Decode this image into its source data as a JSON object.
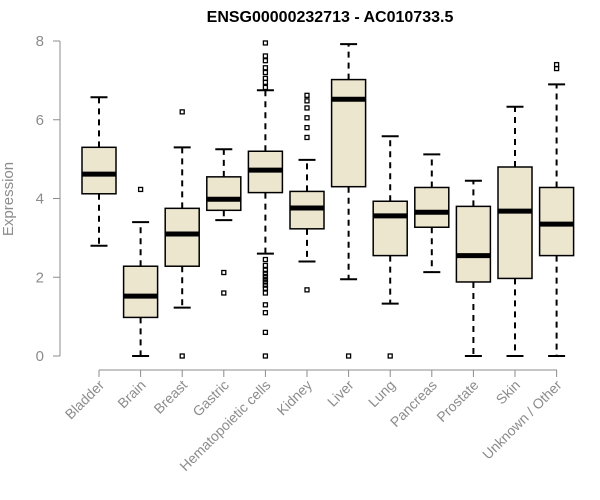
{
  "chart_data": {
    "type": "boxplot",
    "title": "ENSG00000232713 - AC010733.5",
    "xlabel": "",
    "ylabel": "Expression",
    "ylim": [
      0,
      8
    ],
    "yticks": [
      "0",
      "2",
      "4",
      "6",
      "8"
    ],
    "box_fill": "#ede6cf",
    "median_color": "#000000",
    "categories": [
      "Bladder",
      "Brain",
      "Breast",
      "Gastric",
      "Hematopoietic cells",
      "Kidney",
      "Liver",
      "Lung",
      "Pancreas",
      "Prostate",
      "Skin",
      "Unknown / Other"
    ],
    "boxes": [
      {
        "name": "Bladder",
        "whisker_low": 2.8,
        "q1": 4.12,
        "median": 4.62,
        "q3": 5.3,
        "whisker_high": 6.57,
        "outliers": []
      },
      {
        "name": "Brain",
        "whisker_low": 0.0,
        "q1": 0.98,
        "median": 1.52,
        "q3": 2.28,
        "whisker_high": 3.4,
        "outliers": [
          4.23
        ]
      },
      {
        "name": "Breast",
        "whisker_low": 1.23,
        "q1": 2.28,
        "median": 3.1,
        "q3": 3.75,
        "whisker_high": 5.3,
        "outliers": [
          6.2,
          0.0
        ]
      },
      {
        "name": "Gastric",
        "whisker_low": 3.45,
        "q1": 3.7,
        "median": 3.98,
        "q3": 4.55,
        "whisker_high": 5.25,
        "outliers": [
          2.12,
          1.6
        ]
      },
      {
        "name": "Hematopoietic cells",
        "whisker_low": 2.6,
        "q1": 4.15,
        "median": 4.72,
        "q3": 5.2,
        "whisker_high": 6.75,
        "outliers": [
          7.95,
          7.62,
          7.5,
          7.32,
          7.2,
          7.05,
          6.95,
          6.82,
          2.45,
          2.3,
          2.18,
          2.1,
          2.02,
          1.95,
          1.88,
          1.8,
          1.72,
          1.6,
          1.3,
          1.1,
          0.6,
          0.0
        ]
      },
      {
        "name": "Kidney",
        "whisker_low": 2.4,
        "q1": 3.23,
        "median": 3.76,
        "q3": 4.18,
        "whisker_high": 4.98,
        "outliers": [
          6.62,
          6.48,
          6.3,
          6.05,
          5.8,
          5.55,
          1.68
        ]
      },
      {
        "name": "Liver",
        "whisker_low": 1.95,
        "q1": 4.3,
        "median": 6.52,
        "q3": 7.02,
        "whisker_high": 7.92,
        "outliers": [
          0.0
        ]
      },
      {
        "name": "Lung",
        "whisker_low": 1.33,
        "q1": 2.55,
        "median": 3.56,
        "q3": 3.93,
        "whisker_high": 5.58,
        "outliers": [
          0.0
        ]
      },
      {
        "name": "Pancreas",
        "whisker_low": 2.13,
        "q1": 3.27,
        "median": 3.65,
        "q3": 4.28,
        "whisker_high": 5.12,
        "outliers": []
      },
      {
        "name": "Prostate",
        "whisker_low": 0.0,
        "q1": 1.88,
        "median": 2.55,
        "q3": 3.8,
        "whisker_high": 4.45,
        "outliers": []
      },
      {
        "name": "Skin",
        "whisker_low": 0.0,
        "q1": 1.97,
        "median": 3.68,
        "q3": 4.8,
        "whisker_high": 6.33,
        "outliers": []
      },
      {
        "name": "Unknown / Other",
        "whisker_low": 0.0,
        "q1": 2.55,
        "median": 3.35,
        "q3": 4.28,
        "whisker_high": 6.9,
        "outliers": [
          7.4,
          7.3
        ]
      }
    ]
  }
}
